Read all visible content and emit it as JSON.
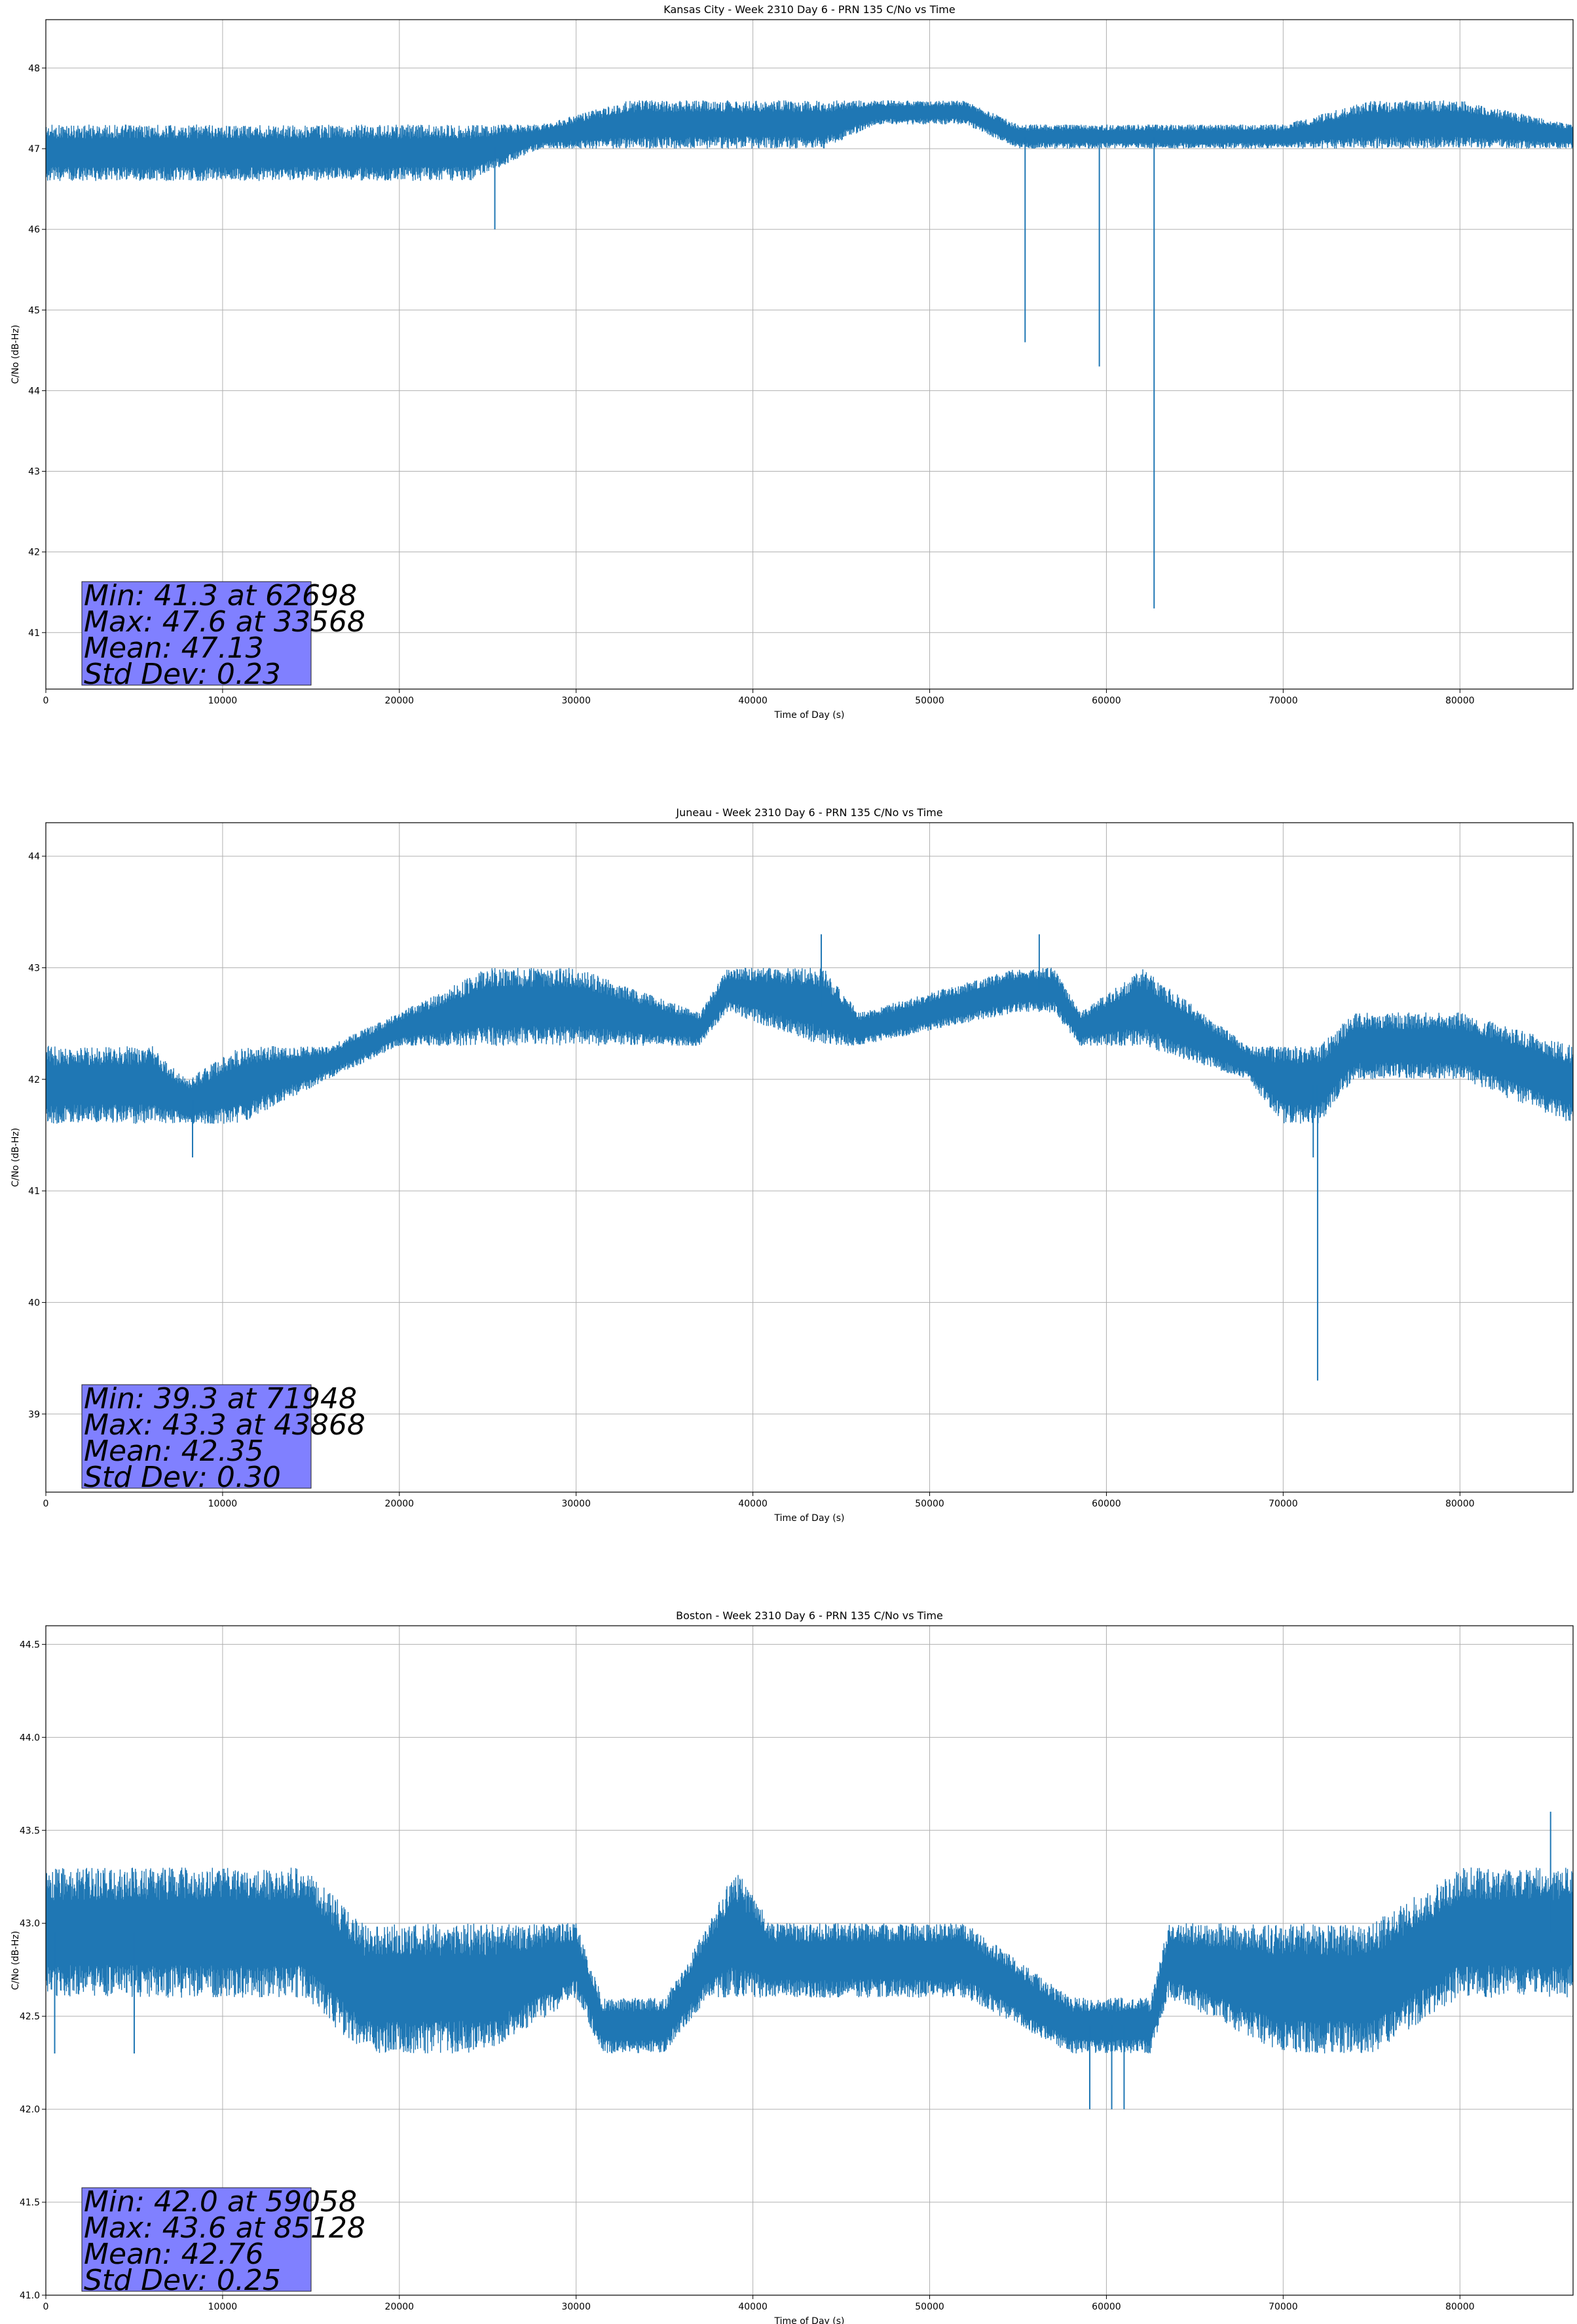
{
  "colors": {
    "series": "#1f77b4",
    "grid": "#b0b0b0",
    "stats_box": "#8080ff",
    "axis": "#000000"
  },
  "chart_data": [
    {
      "type": "line",
      "title": "Kansas City - Week 2310 Day 6 - PRN 135 C/No vs Time",
      "xlabel": "Time of Day (s)",
      "ylabel": "C/No (dB-Hz)",
      "xlim": [
        0,
        86400
      ],
      "ylim": [
        40.3,
        48.6
      ],
      "xticks": [
        0,
        10000,
        20000,
        30000,
        40000,
        50000,
        60000,
        70000,
        80000
      ],
      "xtick_labels": [
        "0",
        "10000",
        "20000",
        "30000",
        "40000",
        "50000",
        "60000",
        "70000",
        "80000"
      ],
      "yticks": [
        41,
        42,
        43,
        44,
        45,
        46,
        47,
        48
      ],
      "ytick_labels": [
        "41",
        "42",
        "43",
        "44",
        "45",
        "46",
        "47",
        "48"
      ],
      "grid": true,
      "band_x": [
        0,
        7000,
        14000,
        20000,
        24000,
        28000,
        33000,
        40000,
        44000,
        47000,
        52000,
        55000,
        62000,
        70000,
        75000,
        80000,
        86400
      ],
      "band_low": [
        46.6,
        46.6,
        46.6,
        46.6,
        46.6,
        47.0,
        47.0,
        47.0,
        47.0,
        47.3,
        47.3,
        47.0,
        47.0,
        47.0,
        47.0,
        47.0,
        47.0
      ],
      "band_high": [
        47.3,
        47.3,
        47.3,
        47.3,
        47.3,
        47.3,
        47.6,
        47.6,
        47.6,
        47.6,
        47.6,
        47.3,
        47.3,
        47.3,
        47.6,
        47.6,
        47.3
      ],
      "spikes": [
        {
          "x": 25400,
          "y": 46.0
        },
        {
          "x": 55400,
          "y": 44.6
        },
        {
          "x": 59600,
          "y": 44.3
        },
        {
          "x": 62698,
          "y": 41.3
        }
      ],
      "stats": [
        "Min: 41.3 at 62698",
        "Max: 47.6 at 33568",
        "Mean: 47.13",
        "Std Dev: 0.23"
      ]
    },
    {
      "type": "line",
      "title": "Juneau - Week 2310 Day 6 - PRN 135 C/No vs Time",
      "xlabel": "Time of Day (s)",
      "ylabel": "C/No (dB-Hz)",
      "xlim": [
        0,
        86400
      ],
      "ylim": [
        38.3,
        44.3
      ],
      "xticks": [
        0,
        10000,
        20000,
        30000,
        40000,
        50000,
        60000,
        70000,
        80000
      ],
      "xtick_labels": [
        "0",
        "10000",
        "20000",
        "30000",
        "40000",
        "50000",
        "60000",
        "70000",
        "80000"
      ],
      "yticks": [
        39,
        40,
        41,
        42,
        43,
        44
      ],
      "ytick_labels": [
        "39",
        "40",
        "41",
        "42",
        "43",
        "44"
      ],
      "grid": true,
      "band_x": [
        0,
        6000,
        8000,
        11000,
        16000,
        20000,
        25000,
        30000,
        37000,
        38500,
        44000,
        46000,
        55000,
        57000,
        58500,
        62000,
        68000,
        70000,
        72000,
        74000,
        80000,
        86400
      ],
      "band_low": [
        41.6,
        41.6,
        41.6,
        41.6,
        42.0,
        42.3,
        42.3,
        42.3,
        42.3,
        42.6,
        42.3,
        42.3,
        42.6,
        42.6,
        42.3,
        42.3,
        42.0,
        41.6,
        41.6,
        42.0,
        42.0,
        41.6
      ],
      "band_high": [
        42.3,
        42.3,
        42.0,
        42.3,
        42.3,
        42.6,
        43.0,
        43.0,
        42.6,
        43.0,
        43.0,
        42.6,
        43.0,
        43.0,
        42.6,
        43.0,
        42.3,
        42.3,
        42.3,
        42.6,
        42.6,
        42.3
      ],
      "spikes": [
        {
          "x": 8300,
          "y": 41.3
        },
        {
          "x": 43868,
          "y": 43.3
        },
        {
          "x": 56200,
          "y": 43.3
        },
        {
          "x": 71700,
          "y": 41.3
        },
        {
          "x": 71948,
          "y": 39.3
        }
      ],
      "stats": [
        "Min: 39.3 at 71948",
        "Max: 43.3 at 43868",
        "Mean: 42.35",
        "Std Dev: 0.30"
      ]
    },
    {
      "type": "line",
      "title": "Boston - Week 2310 Day 6 - PRN 135 C/No vs Time",
      "xlabel": "Time of Day (s)",
      "ylabel": "C/No (dB-Hz)",
      "xlim": [
        0,
        86400
      ],
      "ylim": [
        41.0,
        44.6
      ],
      "xticks": [
        0,
        10000,
        20000,
        30000,
        40000,
        50000,
        60000,
        70000,
        80000
      ],
      "xtick_labels": [
        "0",
        "10000",
        "20000",
        "30000",
        "40000",
        "50000",
        "60000",
        "70000",
        "80000"
      ],
      "yticks": [
        41.0,
        41.5,
        42.0,
        42.5,
        43.0,
        43.5,
        44.0,
        44.5
      ],
      "ytick_labels": [
        "41.0",
        "41.5",
        "42.0",
        "42.5",
        "43.0",
        "43.5",
        "44.0",
        "44.5"
      ],
      "grid": true,
      "band_x": [
        0,
        6000,
        10000,
        14500,
        18000,
        25000,
        30000,
        31500,
        35000,
        37500,
        39000,
        41000,
        46000,
        52000,
        58000,
        62500,
        63500,
        70000,
        75000,
        80000,
        86400
      ],
      "band_low": [
        42.6,
        42.6,
        42.6,
        42.6,
        42.3,
        42.3,
        42.6,
        42.3,
        42.3,
        42.6,
        42.6,
        42.6,
        42.6,
        42.6,
        42.3,
        42.3,
        42.6,
        42.3,
        42.3,
        42.6,
        42.6
      ],
      "band_high": [
        43.3,
        43.3,
        43.3,
        43.3,
        43.0,
        43.0,
        43.0,
        42.6,
        42.6,
        43.0,
        43.3,
        43.0,
        43.0,
        43.0,
        42.6,
        42.6,
        43.0,
        43.0,
        43.0,
        43.3,
        43.3
      ],
      "spikes": [
        {
          "x": 500,
          "y": 42.3
        },
        {
          "x": 5000,
          "y": 42.3
        },
        {
          "x": 59058,
          "y": 42.0
        },
        {
          "x": 60300,
          "y": 42.0
        },
        {
          "x": 61000,
          "y": 42.0
        },
        {
          "x": 85128,
          "y": 43.6
        }
      ],
      "stats": [
        "Min: 42.0 at 59058",
        "Max: 43.6 at 85128",
        "Mean: 42.76",
        "Std Dev: 0.25"
      ]
    }
  ]
}
